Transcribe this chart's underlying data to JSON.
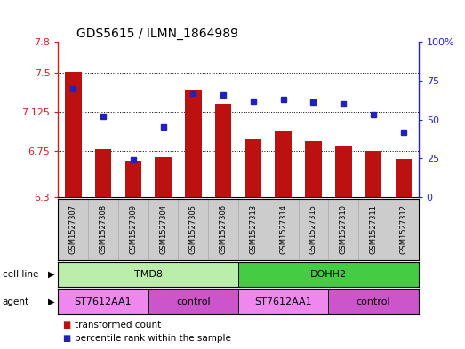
{
  "title": "GDS5615 / ILMN_1864989",
  "samples": [
    "GSM1527307",
    "GSM1527308",
    "GSM1527309",
    "GSM1527304",
    "GSM1527305",
    "GSM1527306",
    "GSM1527313",
    "GSM1527314",
    "GSM1527315",
    "GSM1527310",
    "GSM1527311",
    "GSM1527312"
  ],
  "bar_values": [
    7.513,
    6.762,
    6.655,
    6.69,
    7.34,
    7.2,
    6.87,
    6.935,
    6.845,
    6.8,
    6.748,
    6.672
  ],
  "dot_values": [
    70,
    52,
    24,
    45,
    67,
    66,
    62,
    63,
    61,
    60,
    53,
    42
  ],
  "ylim_left": [
    6.3,
    7.8
  ],
  "ylim_right": [
    0,
    100
  ],
  "yticks_left": [
    6.3,
    6.75,
    7.125,
    7.5,
    7.8
  ],
  "yticks_right": [
    0,
    25,
    50,
    75,
    100
  ],
  "ytick_labels_left": [
    "6.3",
    "6.75",
    "7.125",
    "7.5",
    "7.8"
  ],
  "ytick_labels_right": [
    "0",
    "25",
    "50",
    "75",
    "100%"
  ],
  "hlines": [
    6.75,
    7.125,
    7.5
  ],
  "bar_color": "#bb1111",
  "dot_color": "#2222bb",
  "bar_bottom": 6.3,
  "cell_line_groups": [
    {
      "label": "TMD8",
      "start": 0,
      "end": 5,
      "color": "#bbeeaa"
    },
    {
      "label": "DOHH2",
      "start": 6,
      "end": 11,
      "color": "#44cc44"
    }
  ],
  "agent_groups": [
    {
      "label": "ST7612AA1",
      "start": 0,
      "end": 2,
      "color": "#ee88ee"
    },
    {
      "label": "control",
      "start": 3,
      "end": 5,
      "color": "#cc55cc"
    },
    {
      "label": "ST7612AA1",
      "start": 6,
      "end": 8,
      "color": "#ee88ee"
    },
    {
      "label": "control",
      "start": 9,
      "end": 11,
      "color": "#cc55cc"
    }
  ],
  "legend_items": [
    {
      "label": "transformed count",
      "color": "#bb1111"
    },
    {
      "label": "percentile rank within the sample",
      "color": "#2222bb"
    }
  ],
  "row_labels": [
    "cell line",
    "agent"
  ],
  "left_axis_color": "#cc2222",
  "right_axis_color": "#2222cc",
  "sample_bg_color": "#cccccc",
  "sample_border_color": "#aaaaaa"
}
